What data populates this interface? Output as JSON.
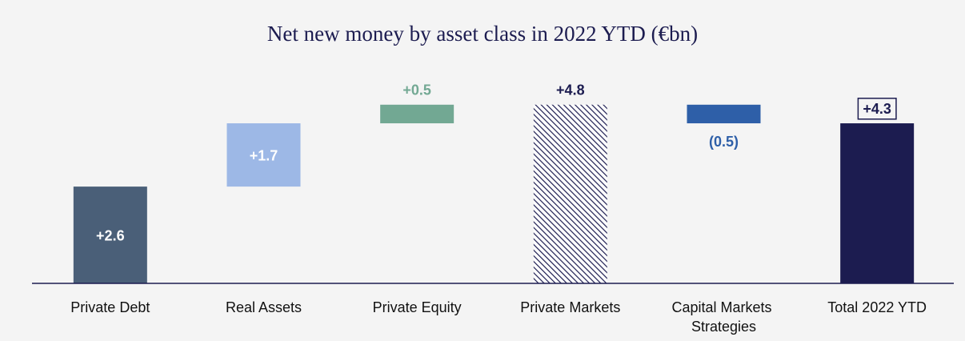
{
  "chart_data": {
    "type": "waterfall",
    "title": "Net new money by asset class in 2022 YTD (€bn)",
    "categories": [
      "Private Debt",
      "Real Assets",
      "Private Equity",
      "Private Markets",
      "Capital Markets Strategies",
      "Total 2022 YTD"
    ],
    "values": [
      2.6,
      1.7,
      0.5,
      4.8,
      -0.5,
      4.3
    ],
    "value_labels": [
      "+2.6",
      "+1.7",
      "+0.5",
      "+4.8",
      "(0.5)",
      "+4.3"
    ],
    "colors": [
      "#4a5f78",
      "#9db8e6",
      "#72a893",
      "#1c1c50",
      "#2e5fa8",
      "#1c1c50"
    ]
  }
}
